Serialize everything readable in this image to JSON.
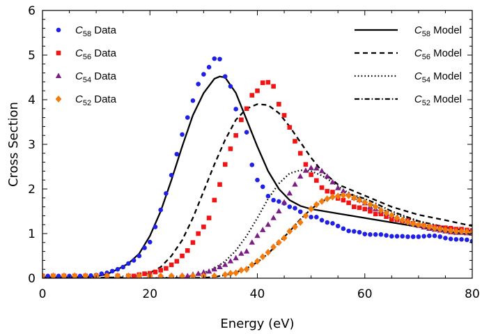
{
  "chart_data": {
    "type": "scatter",
    "xlabel": "Energy (eV)",
    "ylabel": "Cross Section",
    "xlim": [
      0,
      80
    ],
    "ylim": [
      0,
      6
    ],
    "xticks": [
      0,
      20,
      40,
      60,
      80
    ],
    "yticks": [
      0,
      1,
      2,
      3,
      4,
      5,
      6
    ],
    "grid": false,
    "legend_data_placement": "top-left",
    "legend_model_placement": "top-right",
    "series": [
      {
        "name": "C58 Data",
        "base": "C",
        "sub": "58",
        "suffix": " Data",
        "kind": "markers",
        "marker": "circle",
        "color": "#1f1fe6",
        "x": [
          0,
          1,
          2,
          3,
          4,
          5,
          6,
          7,
          8,
          9,
          10,
          11,
          12,
          13,
          14,
          15,
          16,
          17,
          18,
          19,
          20,
          21,
          22,
          23,
          24,
          25,
          26,
          27,
          28,
          29,
          30,
          31,
          32,
          33,
          34,
          35,
          36,
          37,
          38,
          39,
          40,
          41,
          42,
          43,
          44,
          45,
          46,
          47,
          48,
          49,
          50,
          51,
          52,
          53,
          54,
          55,
          56,
          57,
          58,
          59,
          60,
          61,
          62,
          63,
          64,
          65,
          66,
          67,
          68,
          69,
          70,
          71,
          72,
          73,
          74,
          75,
          76,
          77,
          78,
          79,
          80
        ],
        "y": [
          0.05,
          0.05,
          0.05,
          0.05,
          0.05,
          0.05,
          0.05,
          0.05,
          0.06,
          0.06,
          0.07,
          0.1,
          0.12,
          0.16,
          0.2,
          0.25,
          0.33,
          0.4,
          0.5,
          0.68,
          0.81,
          1.15,
          1.53,
          1.9,
          2.31,
          2.78,
          3.22,
          3.6,
          3.98,
          4.35,
          4.57,
          4.73,
          4.92,
          4.91,
          4.52,
          4.3,
          3.79,
          3.55,
          3.27,
          2.54,
          2.2,
          2.05,
          1.84,
          1.75,
          1.72,
          1.68,
          1.6,
          1.57,
          1.49,
          1.4,
          1.37,
          1.37,
          1.3,
          1.25,
          1.23,
          1.17,
          1.11,
          1.06,
          1.05,
          1.03,
          0.99,
          0.98,
          0.98,
          0.98,
          0.96,
          0.94,
          0.94,
          0.94,
          0.93,
          0.93,
          0.93,
          0.94,
          0.95,
          0.95,
          0.93,
          0.9,
          0.88,
          0.87,
          0.87,
          0.86,
          0.83
        ]
      },
      {
        "name": "C56 Data",
        "base": "C",
        "sub": "56",
        "suffix": " Data",
        "kind": "markers",
        "marker": "square",
        "color": "#f01414",
        "x": [
          0,
          2,
          4,
          6,
          8,
          10,
          12,
          14,
          16,
          17,
          18,
          19,
          20,
          21,
          22,
          23,
          24,
          25,
          26,
          27,
          28,
          29,
          30,
          31,
          32,
          33,
          34,
          35,
          36,
          37,
          38,
          39,
          40,
          41,
          42,
          43,
          44,
          45,
          46,
          47,
          48,
          49,
          50,
          51,
          52,
          53,
          54,
          55,
          56,
          57,
          58,
          59,
          60,
          61,
          62,
          63,
          64,
          65,
          66,
          67,
          68,
          69,
          70,
          71,
          72,
          73,
          74,
          75,
          76,
          77,
          78,
          79,
          80
        ],
        "y": [
          0.05,
          0.05,
          0.05,
          0.05,
          0.05,
          0.05,
          0.05,
          0.05,
          0.05,
          0.05,
          0.08,
          0.1,
          0.11,
          0.14,
          0.18,
          0.22,
          0.3,
          0.38,
          0.5,
          0.62,
          0.8,
          1.0,
          1.15,
          1.35,
          1.75,
          2.1,
          2.55,
          2.9,
          3.2,
          3.55,
          3.8,
          4.1,
          4.2,
          4.38,
          4.39,
          4.3,
          3.9,
          3.65,
          3.38,
          3.07,
          2.8,
          2.55,
          2.32,
          2.19,
          2.03,
          1.95,
          1.93,
          1.79,
          1.75,
          1.69,
          1.6,
          1.58,
          1.55,
          1.5,
          1.44,
          1.44,
          1.38,
          1.32,
          1.31,
          1.28,
          1.29,
          1.23,
          1.18,
          1.18,
          1.15,
          1.15,
          1.13,
          1.13,
          1.12,
          1.1,
          1.1,
          1.08,
          1.07
        ]
      },
      {
        "name": "C54 Data",
        "base": "C",
        "sub": "54",
        "suffix": " Data",
        "kind": "markers",
        "marker": "triangle",
        "color": "#7b1e84",
        "x": [
          0,
          2,
          4,
          6,
          8,
          10,
          12,
          14,
          16,
          18,
          20,
          22,
          24,
          26,
          27,
          28,
          29,
          30,
          31,
          32,
          33,
          34,
          35,
          36,
          37,
          38,
          39,
          40,
          41,
          42,
          43,
          44,
          45,
          46,
          47,
          48,
          49,
          50,
          51,
          52,
          53,
          54,
          55,
          56,
          57,
          58,
          59,
          60,
          61,
          62,
          63,
          64,
          65,
          66,
          67,
          68,
          69,
          70,
          71,
          72,
          73,
          74,
          75,
          76,
          77,
          78,
          79,
          80
        ],
        "y": [
          0.05,
          0.05,
          0.05,
          0.05,
          0.05,
          0.05,
          0.05,
          0.05,
          0.05,
          0.05,
          0.05,
          0.05,
          0.05,
          0.05,
          0.05,
          0.08,
          0.1,
          0.13,
          0.15,
          0.2,
          0.25,
          0.3,
          0.38,
          0.45,
          0.55,
          0.6,
          0.8,
          0.95,
          1.08,
          1.2,
          1.35,
          1.5,
          1.7,
          1.9,
          2.1,
          2.28,
          2.41,
          2.47,
          2.46,
          2.4,
          2.28,
          2.15,
          2.02,
          1.95,
          1.88,
          1.8,
          1.75,
          1.68,
          1.6,
          1.55,
          1.5,
          1.45,
          1.4,
          1.35,
          1.3,
          1.26,
          1.22,
          1.18,
          1.14,
          1.11,
          1.09,
          1.07,
          1.05,
          1.03,
          1.02,
          1.02,
          1.01,
          1.0
        ]
      },
      {
        "name": "C52 Data",
        "base": "C",
        "sub": "52",
        "suffix": " Data",
        "kind": "markers",
        "marker": "diamond",
        "color": "#f27c0e",
        "x": [
          0,
          2,
          4,
          6,
          8,
          10,
          12,
          14,
          16,
          18,
          20,
          22,
          24,
          26,
          28,
          30,
          32,
          34,
          35,
          36,
          37,
          38,
          39,
          40,
          41,
          42,
          43,
          44,
          45,
          46,
          47,
          48,
          49,
          50,
          51,
          52,
          53,
          54,
          55,
          56,
          57,
          58,
          59,
          60,
          61,
          62,
          63,
          64,
          65,
          66,
          67,
          68,
          69,
          70,
          71,
          72,
          73,
          74,
          75,
          76,
          77,
          78,
          79,
          80
        ],
        "y": [
          0.05,
          0.05,
          0.05,
          0.05,
          0.05,
          0.05,
          0.05,
          0.05,
          0.05,
          0.05,
          0.05,
          0.05,
          0.05,
          0.05,
          0.05,
          0.05,
          0.05,
          0.08,
          0.11,
          0.12,
          0.18,
          0.2,
          0.3,
          0.38,
          0.48,
          0.58,
          0.7,
          0.8,
          0.9,
          1.05,
          1.15,
          1.25,
          1.4,
          1.55,
          1.65,
          1.72,
          1.78,
          1.82,
          1.84,
          1.86,
          1.85,
          1.8,
          1.75,
          1.7,
          1.65,
          1.6,
          1.52,
          1.46,
          1.41,
          1.35,
          1.3,
          1.26,
          1.22,
          1.2,
          1.18,
          1.15,
          1.12,
          1.1,
          1.08,
          1.06,
          1.05,
          1.05,
          1.04,
          1.03
        ]
      },
      {
        "name": "C58 Model",
        "base": "C",
        "sub": "58",
        "suffix": " Model",
        "kind": "line",
        "dash": "solid",
        "color": "#000000",
        "x": [
          0,
          5,
          10,
          12,
          14,
          16,
          18,
          20,
          22,
          24,
          26,
          28,
          30,
          32,
          33,
          34,
          36,
          38,
          40,
          42,
          44,
          46,
          48,
          50,
          55,
          60,
          65,
          70,
          75,
          80
        ],
        "y": [
          0.02,
          0.02,
          0.04,
          0.09,
          0.2,
          0.33,
          0.55,
          0.95,
          1.5,
          2.2,
          2.95,
          3.65,
          4.15,
          4.47,
          4.52,
          4.5,
          4.15,
          3.55,
          2.95,
          2.4,
          2.0,
          1.75,
          1.62,
          1.55,
          1.45,
          1.35,
          1.25,
          1.15,
          1.05,
          0.97
        ]
      },
      {
        "name": "C56 Model",
        "base": "C",
        "sub": "56",
        "suffix": " Model",
        "kind": "line",
        "dash": "dashed",
        "color": "#000000",
        "x": [
          0,
          10,
          15,
          18,
          20,
          22,
          24,
          26,
          28,
          30,
          32,
          34,
          36,
          38,
          40,
          42,
          44,
          46,
          48,
          50,
          52,
          55,
          60,
          65,
          70,
          75,
          80
        ],
        "y": [
          0.01,
          0.01,
          0.02,
          0.06,
          0.12,
          0.25,
          0.5,
          0.85,
          1.35,
          1.95,
          2.55,
          3.1,
          3.55,
          3.8,
          3.9,
          3.88,
          3.7,
          3.4,
          3.05,
          2.7,
          2.4,
          2.1,
          1.85,
          1.6,
          1.42,
          1.3,
          1.17
        ]
      },
      {
        "name": "C54 Model",
        "base": "C",
        "sub": "54",
        "suffix": " Model",
        "kind": "line",
        "dash": "dotted",
        "color": "#000000",
        "x": [
          0,
          10,
          20,
          25,
          28,
          30,
          32,
          34,
          36,
          38,
          40,
          42,
          44,
          46,
          48,
          50,
          52,
          54,
          56,
          58,
          60,
          65,
          70,
          75,
          80
        ],
        "y": [
          0.0,
          0.0,
          0.0,
          0.02,
          0.06,
          0.12,
          0.22,
          0.38,
          0.62,
          0.95,
          1.35,
          1.78,
          2.12,
          2.35,
          2.42,
          2.4,
          2.3,
          2.15,
          1.98,
          1.85,
          1.72,
          1.45,
          1.27,
          1.15,
          1.06
        ]
      },
      {
        "name": "C52 Model",
        "base": "C",
        "sub": "52",
        "suffix": " Model",
        "kind": "line",
        "dash": "dashdot",
        "color": "#000000",
        "x": [
          0,
          10,
          20,
          30,
          32,
          34,
          36,
          38,
          40,
          42,
          44,
          46,
          48,
          50,
          52,
          54,
          56,
          58,
          60,
          62,
          65,
          70,
          75,
          80
        ],
        "y": [
          0.0,
          0.0,
          0.0,
          0.01,
          0.03,
          0.07,
          0.13,
          0.22,
          0.36,
          0.55,
          0.8,
          1.05,
          1.32,
          1.55,
          1.72,
          1.83,
          1.88,
          1.86,
          1.78,
          1.68,
          1.5,
          1.28,
          1.14,
          1.05
        ]
      }
    ]
  }
}
